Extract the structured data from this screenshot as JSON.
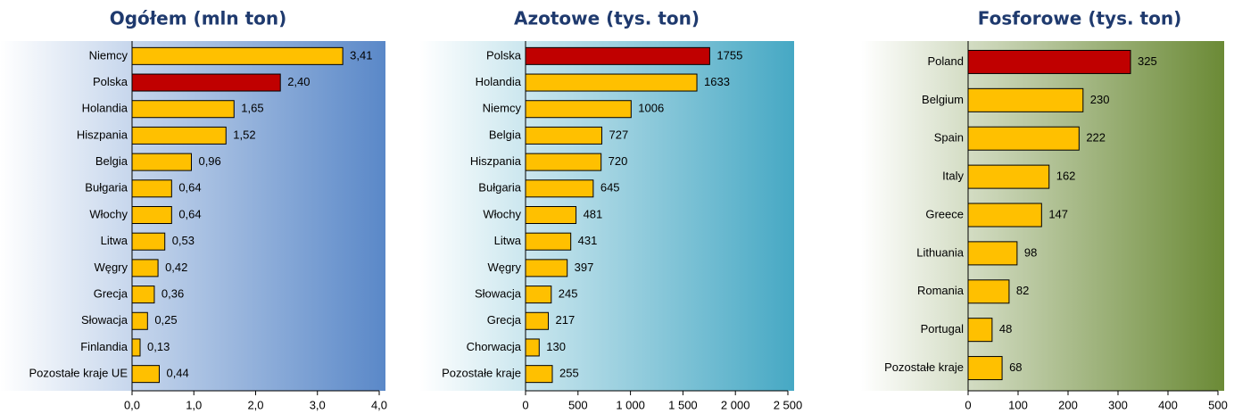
{
  "chart_data": [
    {
      "type": "bar",
      "orientation": "horizontal",
      "title": "Ogółem (mln ton)",
      "categories": [
        "Niemcy",
        "Polska",
        "Holandia",
        "Hiszpania",
        "Belgia",
        "Bułgaria",
        "Włochy",
        "Litwa",
        "Węgry",
        "Grecja",
        "Słowacja",
        "Finlandia",
        "Pozostałe kraje UE"
      ],
      "values": [
        3.41,
        2.4,
        1.65,
        1.52,
        0.96,
        0.64,
        0.64,
        0.53,
        0.42,
        0.36,
        0.25,
        0.13,
        0.44
      ],
      "value_labels": [
        "3,41",
        "2,40",
        "1,65",
        "1,52",
        "0,96",
        "0,64",
        "0,64",
        "0,53",
        "0,42",
        "0,36",
        "0,25",
        "0,13",
        "0,44"
      ],
      "colors": [
        "#ffc000",
        "#c00000",
        "#ffc000",
        "#ffc000",
        "#ffc000",
        "#ffc000",
        "#ffc000",
        "#ffc000",
        "#ffc000",
        "#ffc000",
        "#ffc000",
        "#ffc000",
        "#ffc000"
      ],
      "xlim": [
        0,
        4
      ],
      "xticks": [
        {
          "value": 0,
          "label": "0,0"
        },
        {
          "value": 1,
          "label": "1,0"
        },
        {
          "value": 2,
          "label": "2,0"
        },
        {
          "value": 3,
          "label": "3,0"
        },
        {
          "value": 4,
          "label": "4,0"
        }
      ],
      "background": "#5a88c8"
    },
    {
      "type": "bar",
      "orientation": "horizontal",
      "title": "Azotowe (tys. ton)",
      "categories": [
        "Polska",
        "Holandia",
        "Niemcy",
        "Belgia",
        "Hiszpania",
        "Bułgaria",
        "Włochy",
        "Litwa",
        "Węgry",
        "Słowacja",
        "Grecja",
        "Chorwacja",
        "Pozostałe kraje"
      ],
      "values": [
        1755,
        1633,
        1006,
        727,
        720,
        645,
        481,
        431,
        397,
        245,
        217,
        130,
        255
      ],
      "colors": [
        "#c00000",
        "#ffc000",
        "#ffc000",
        "#ffc000",
        "#ffc000",
        "#ffc000",
        "#ffc000",
        "#ffc000",
        "#ffc000",
        "#ffc000",
        "#ffc000",
        "#ffc000",
        "#ffc000"
      ],
      "xlim": [
        0,
        2500
      ],
      "xticks": [
        0,
        500,
        {
          "value": 1000,
          "label": "1 000"
        },
        {
          "value": 1500,
          "label": "1 500"
        },
        {
          "value": 2000,
          "label": "2 000"
        },
        {
          "value": 2500,
          "label": "2 500"
        }
      ],
      "background": "#46a8c4"
    },
    {
      "type": "bar",
      "orientation": "horizontal",
      "title": "Fosforowe (tys. ton)",
      "categories": [
        "Poland",
        "Belgium",
        "Spain",
        "Italy",
        "Greece",
        "Lithuania",
        "Romania",
        "Portugal",
        "Pozostałe kraje"
      ],
      "values": [
        325,
        230,
        222,
        162,
        147,
        98,
        82,
        48,
        68
      ],
      "colors": [
        "#c00000",
        "#ffc000",
        "#ffc000",
        "#ffc000",
        "#ffc000",
        "#ffc000",
        "#ffc000",
        "#ffc000",
        "#ffc000"
      ],
      "xlim": [
        0,
        500
      ],
      "xticks": [
        0,
        100,
        200,
        300,
        400,
        500
      ],
      "background": "#6b8a36"
    }
  ]
}
